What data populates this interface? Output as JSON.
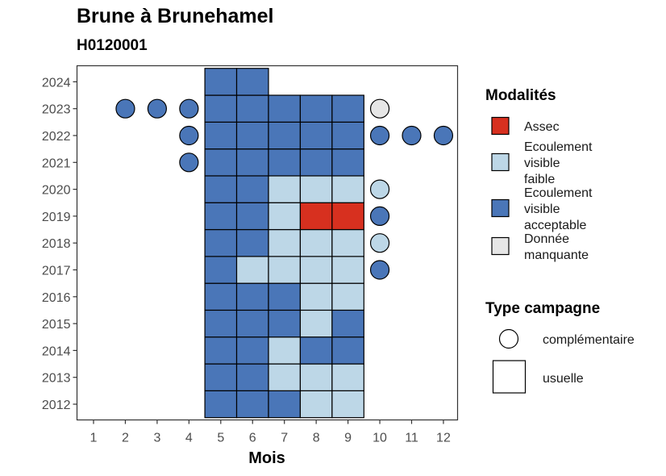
{
  "chart_data": {
    "type": "heatmap",
    "title": "Brune à Brunehamel",
    "subtitle": "H0120001",
    "xlabel": "Mois",
    "ylabel": "",
    "x_ticks": [
      1,
      2,
      3,
      4,
      5,
      6,
      7,
      8,
      9,
      10,
      11,
      12
    ],
    "y_ticks": [
      2012,
      2013,
      2014,
      2015,
      2016,
      2017,
      2018,
      2019,
      2020,
      2021,
      2022,
      2023,
      2024
    ],
    "xlim": [
      0.5,
      12.5
    ],
    "ylim": [
      2011.4,
      2024.6
    ],
    "grid": false,
    "legend_position": "right",
    "categories": {
      "assec": {
        "label": "Assec",
        "color": "#d7301f"
      },
      "faible": {
        "label": "Ecoulement visible faible",
        "color": "#bdd7e7"
      },
      "acceptable": {
        "label": "Ecoulement visible acceptable",
        "color": "#4a76b8"
      },
      "manquante": {
        "label": "Donnée manquante",
        "color": "#e6e6e6"
      }
    },
    "legend_modalites": {
      "title": "Modalités",
      "items": [
        {
          "key": "assec",
          "lines": [
            "Assec"
          ]
        },
        {
          "key": "faible",
          "lines": [
            "Ecoulement",
            "visible",
            "faible"
          ]
        },
        {
          "key": "acceptable",
          "lines": [
            "Ecoulement",
            "visible",
            "acceptable"
          ]
        },
        {
          "key": "manquante",
          "lines": [
            "Donnée",
            "manquante"
          ]
        }
      ]
    },
    "legend_campagne": {
      "title": "Type campagne",
      "items": [
        {
          "shape": "circle",
          "label": "complémentaire"
        },
        {
          "shape": "square",
          "label": "usuelle"
        }
      ]
    },
    "usuelle": [
      {
        "year": 2012,
        "months": [
          5,
          6,
          7,
          8,
          9
        ],
        "values": [
          "acceptable",
          "acceptable",
          "acceptable",
          "faible",
          "faible"
        ]
      },
      {
        "year": 2013,
        "months": [
          5,
          6,
          7,
          8,
          9
        ],
        "values": [
          "acceptable",
          "acceptable",
          "faible",
          "faible",
          "faible"
        ]
      },
      {
        "year": 2014,
        "months": [
          5,
          6,
          7,
          8,
          9
        ],
        "values": [
          "acceptable",
          "acceptable",
          "faible",
          "acceptable",
          "acceptable"
        ]
      },
      {
        "year": 2015,
        "months": [
          5,
          6,
          7,
          8,
          9
        ],
        "values": [
          "acceptable",
          "acceptable",
          "acceptable",
          "faible",
          "acceptable"
        ]
      },
      {
        "year": 2016,
        "months": [
          5,
          6,
          7,
          8,
          9
        ],
        "values": [
          "acceptable",
          "acceptable",
          "acceptable",
          "faible",
          "faible"
        ]
      },
      {
        "year": 2017,
        "months": [
          5,
          6,
          7,
          8,
          9
        ],
        "values": [
          "acceptable",
          "faible",
          "faible",
          "faible",
          "faible"
        ]
      },
      {
        "year": 2018,
        "months": [
          5,
          6,
          7,
          8,
          9
        ],
        "values": [
          "acceptable",
          "acceptable",
          "faible",
          "faible",
          "faible"
        ]
      },
      {
        "year": 2019,
        "months": [
          5,
          6,
          7,
          8,
          9
        ],
        "values": [
          "acceptable",
          "acceptable",
          "faible",
          "assec",
          "assec"
        ]
      },
      {
        "year": 2020,
        "months": [
          5,
          6,
          7,
          8,
          9
        ],
        "values": [
          "acceptable",
          "acceptable",
          "faible",
          "faible",
          "faible"
        ]
      },
      {
        "year": 2021,
        "months": [
          5,
          6,
          7,
          8,
          9
        ],
        "values": [
          "acceptable",
          "acceptable",
          "acceptable",
          "acceptable",
          "acceptable"
        ]
      },
      {
        "year": 2022,
        "months": [
          5,
          6,
          7,
          8,
          9
        ],
        "values": [
          "acceptable",
          "acceptable",
          "acceptable",
          "acceptable",
          "acceptable"
        ]
      },
      {
        "year": 2023,
        "months": [
          5,
          6,
          7,
          8,
          9
        ],
        "values": [
          "acceptable",
          "acceptable",
          "acceptable",
          "acceptable",
          "acceptable"
        ]
      },
      {
        "year": 2024,
        "months": [
          5,
          6
        ],
        "values": [
          "acceptable",
          "acceptable"
        ]
      }
    ],
    "complementaire": [
      {
        "year": 2023,
        "month": 2,
        "value": "acceptable"
      },
      {
        "year": 2023,
        "month": 3,
        "value": "acceptable"
      },
      {
        "year": 2023,
        "month": 4,
        "value": "acceptable"
      },
      {
        "year": 2023,
        "month": 10,
        "value": "manquante"
      },
      {
        "year": 2022,
        "month": 4,
        "value": "acceptable"
      },
      {
        "year": 2022,
        "month": 10,
        "value": "acceptable"
      },
      {
        "year": 2022,
        "month": 11,
        "value": "acceptable"
      },
      {
        "year": 2022,
        "month": 12,
        "value": "acceptable"
      },
      {
        "year": 2021,
        "month": 4,
        "value": "acceptable"
      },
      {
        "year": 2020,
        "month": 10,
        "value": "faible"
      },
      {
        "year": 2019,
        "month": 10,
        "value": "acceptable"
      },
      {
        "year": 2018,
        "month": 10,
        "value": "faible"
      },
      {
        "year": 2017,
        "month": 10,
        "value": "acceptable"
      }
    ]
  }
}
